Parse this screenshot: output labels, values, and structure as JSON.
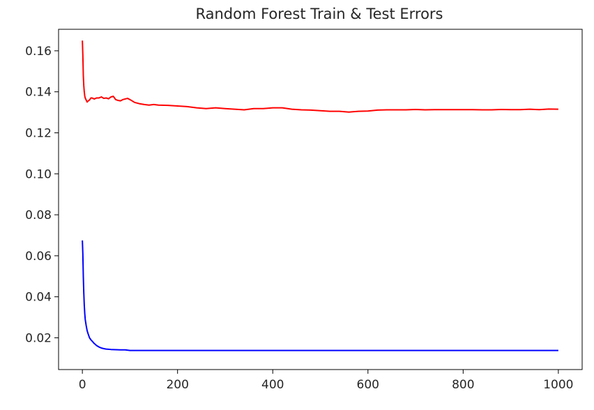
{
  "chart_data": {
    "type": "line",
    "title": "Random Forest Train & Test Errors",
    "xlabel": "",
    "ylabel": "",
    "xlim": [
      -50,
      1050
    ],
    "ylim": [
      0.0045,
      0.1705
    ],
    "grid": false,
    "legend": "none",
    "x_ticks": [
      0,
      200,
      400,
      600,
      800,
      1000
    ],
    "y_ticks": [
      0.02,
      0.04,
      0.06,
      0.08,
      0.1,
      0.12,
      0.14,
      0.16
    ],
    "y_tick_labels": [
      "0.02",
      "0.04",
      "0.06",
      "0.08",
      "0.10",
      "0.12",
      "0.14",
      "0.16"
    ],
    "x_tick_labels": [
      "0",
      "200",
      "400",
      "600",
      "800",
      "1000"
    ],
    "series": [
      {
        "color": "#ff0000",
        "x": [
          0,
          1,
          2,
          3,
          4,
          5,
          6,
          8,
          10,
          12,
          15,
          18,
          20,
          25,
          30,
          35,
          40,
          45,
          50,
          55,
          60,
          65,
          70,
          75,
          80,
          85,
          90,
          95,
          100,
          110,
          120,
          130,
          140,
          150,
          160,
          180,
          200,
          220,
          240,
          260,
          280,
          300,
          320,
          340,
          360,
          380,
          400,
          420,
          440,
          460,
          480,
          500,
          520,
          540,
          560,
          580,
          600,
          620,
          640,
          660,
          680,
          700,
          720,
          740,
          760,
          780,
          800,
          820,
          840,
          860,
          880,
          900,
          920,
          940,
          960,
          980,
          1000
        ],
        "y": [
          0.165,
          0.158,
          0.148,
          0.143,
          0.14,
          0.138,
          0.137,
          0.136,
          0.135,
          0.1355,
          0.136,
          0.137,
          0.137,
          0.1365,
          0.137,
          0.137,
          0.1375,
          0.1368,
          0.137,
          0.1366,
          0.1375,
          0.1378,
          0.1362,
          0.1358,
          0.1356,
          0.1362,
          0.1365,
          0.1368,
          0.1362,
          0.1348,
          0.1342,
          0.1338,
          0.1335,
          0.1338,
          0.1335,
          0.1334,
          0.1331,
          0.1328,
          0.1322,
          0.1318,
          0.1322,
          0.1318,
          0.1315,
          0.1312,
          0.1318,
          0.1318,
          0.1322,
          0.1322,
          0.1315,
          0.1312,
          0.1311,
          0.1308,
          0.1305,
          0.1305,
          0.1301,
          0.1305,
          0.1306,
          0.1311,
          0.1312,
          0.1312,
          0.1312,
          0.1314,
          0.1312,
          0.1313,
          0.1313,
          0.1313,
          0.1313,
          0.1313,
          0.1312,
          0.1312,
          0.1314,
          0.1313,
          0.1313,
          0.1315,
          0.1313,
          0.1316,
          0.1315
        ]
      },
      {
        "color": "#0000ff",
        "x": [
          0,
          1,
          2,
          3,
          4,
          5,
          6,
          8,
          10,
          12,
          15,
          18,
          20,
          25,
          30,
          35,
          40,
          45,
          50,
          60,
          70,
          80,
          90,
          100,
          120,
          150,
          200,
          300,
          400,
          500,
          600,
          700,
          800,
          900,
          1000
        ],
        "y": [
          0.0675,
          0.061,
          0.05,
          0.042,
          0.036,
          0.032,
          0.029,
          0.026,
          0.0235,
          0.022,
          0.02,
          0.019,
          0.0185,
          0.0172,
          0.0162,
          0.0155,
          0.015,
          0.0147,
          0.0145,
          0.0143,
          0.0142,
          0.0141,
          0.0141,
          0.0138,
          0.0138,
          0.0138,
          0.0138,
          0.0138,
          0.0138,
          0.0138,
          0.0138,
          0.0138,
          0.0138,
          0.0138,
          0.0138
        ]
      }
    ]
  }
}
